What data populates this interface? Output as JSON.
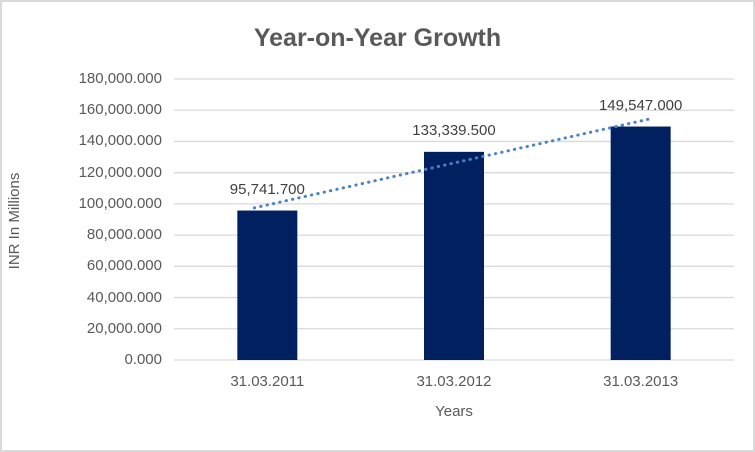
{
  "chart": {
    "title": "Year-on-Year Growth",
    "x_axis_label": "Years",
    "y_axis_label": "INR In Millions"
  },
  "chart_data": {
    "type": "bar",
    "title": "Year-on-Year Growth",
    "xlabel": "Years",
    "ylabel": "INR In Millions",
    "categories": [
      "31.03.2011",
      "31.03.2012",
      "31.03.2013"
    ],
    "values": [
      95741.7,
      133339.5,
      149547.0
    ],
    "data_labels": [
      "95,741.700",
      "133,339.500",
      "149,547.000"
    ],
    "ylim": [
      0,
      180000
    ],
    "y_tick_step": 20000,
    "y_tick_labels": [
      "0.000",
      "20,000.000",
      "40,000.000",
      "60,000.000",
      "80,000.000",
      "100,000.000",
      "120,000.000",
      "140,000.000",
      "160,000.000",
      "180,000.000"
    ],
    "grid": true,
    "legend": false,
    "trendline": {
      "type": "linear",
      "style": "dotted"
    }
  },
  "colors": {
    "bar": "#002060",
    "trendline": "#4a82c6",
    "gridline": "#d9d9d9",
    "border": "#d9d9d9",
    "background": "#ffffff",
    "title_text": "#595959",
    "axis_text": "#595959",
    "data_label_text": "#404040"
  }
}
